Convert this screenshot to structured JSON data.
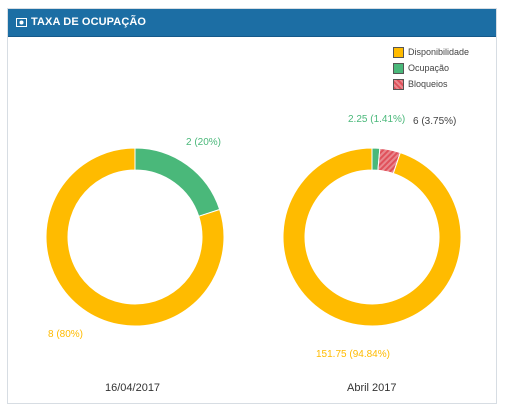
{
  "panel": {
    "title": "TAXA DE OCUPAÇÃO",
    "icon": "money-icon"
  },
  "colors": {
    "disponibilidade": "#ffbb00",
    "ocupacao": "#4ab87a",
    "bloqueios": "#e0505a",
    "header": "#1c6ea4"
  },
  "legend": {
    "disponibilidade": "Disponibilidade",
    "ocupacao": "Ocupação",
    "bloqueios": "Bloqueios"
  },
  "chart_data": [
    {
      "type": "pie",
      "title": "16/04/2017",
      "slices": [
        {
          "name": "Ocupação",
          "value": 2,
          "label": "2 (20%)"
        },
        {
          "name": "Disponibilidade",
          "value": 8,
          "label": "8 (80%)"
        }
      ]
    },
    {
      "type": "pie",
      "title": "Abril 2017",
      "slices": [
        {
          "name": "Ocupação",
          "value": 2.25,
          "label": "2.25 (1.41%)"
        },
        {
          "name": "Bloqueios",
          "value": 6,
          "label": "6 (3.75%)"
        },
        {
          "name": "Disponibilidade",
          "value": 151.75,
          "label": "151.75 (94.84%)"
        }
      ]
    }
  ]
}
